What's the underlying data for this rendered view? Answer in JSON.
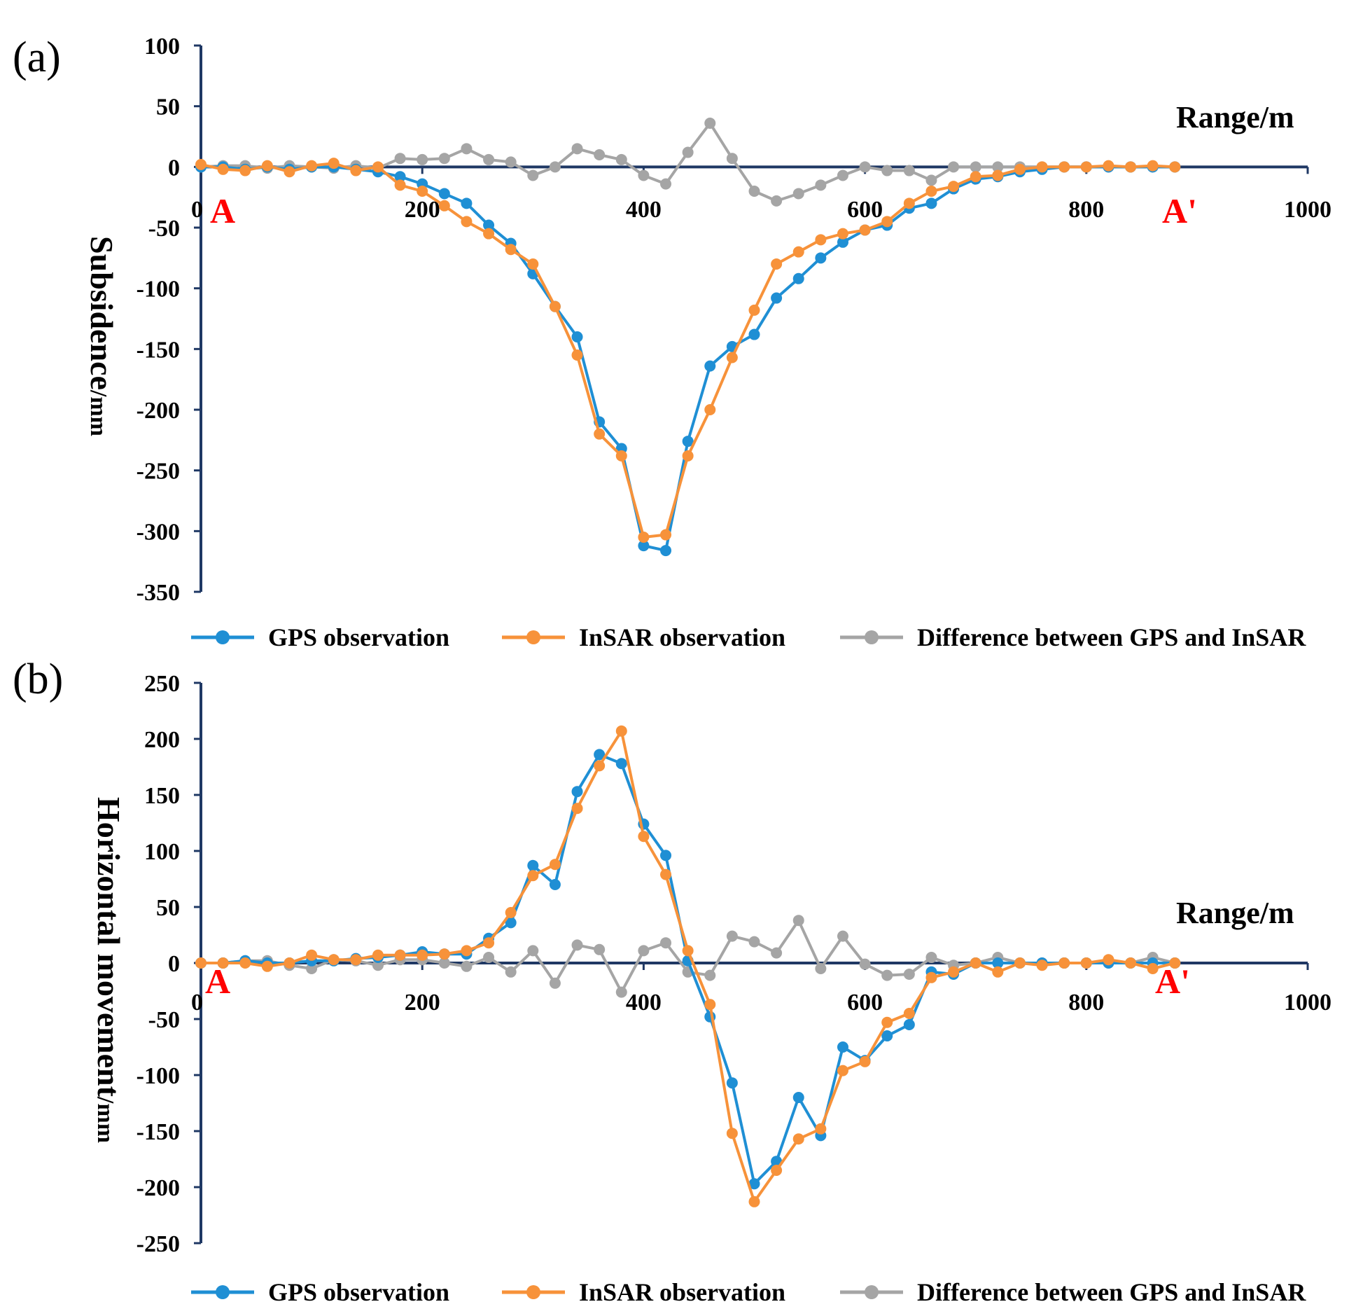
{
  "chart_data": [
    {
      "type": "line",
      "panel_tag": "(a)",
      "ylabel": "Subsidence",
      "ylabel_unit": "/mm",
      "xlabel": "Range/m",
      "start_label": "A",
      "end_label": "A'",
      "xlim": [
        0,
        1000
      ],
      "ylim": [
        -350,
        100
      ],
      "xticks": [
        0,
        200,
        400,
        600,
        800,
        1000
      ],
      "yticks": [
        100,
        50,
        0,
        -50,
        -100,
        -150,
        -200,
        -250,
        -300,
        -350
      ],
      "x": [
        0,
        20,
        40,
        60,
        80,
        100,
        120,
        140,
        160,
        180,
        200,
        220,
        240,
        260,
        280,
        300,
        320,
        340,
        360,
        380,
        400,
        420,
        440,
        460,
        480,
        500,
        520,
        540,
        560,
        580,
        600,
        620,
        640,
        660,
        680,
        700,
        720,
        740,
        760,
        780,
        800,
        820,
        840,
        860,
        880
      ],
      "series": [
        {
          "name": "GPS observation",
          "color": "#1f8fd4",
          "values": [
            0,
            0,
            -2,
            0,
            -2,
            0,
            0,
            -2,
            -4,
            -8,
            -14,
            -22,
            -30,
            -48,
            -63,
            -88,
            -115,
            -140,
            -210,
            -232,
            -312,
            -316,
            -226,
            -164,
            -148,
            -138,
            -108,
            -92,
            -75,
            -62,
            -52,
            -48,
            -34,
            -30,
            -18,
            -10,
            -8,
            -4,
            -2,
            0,
            0,
            0,
            0,
            0,
            0
          ]
        },
        {
          "name": "InSAR observation",
          "color": "#f7923a",
          "values": [
            2,
            -2,
            -3,
            1,
            -4,
            1,
            3,
            -3,
            0,
            -15,
            -20,
            -32,
            -45,
            -55,
            -68,
            -80,
            -115,
            -155,
            -220,
            -238,
            -305,
            -303,
            -238,
            -200,
            -157,
            -118,
            -80,
            -70,
            -60,
            -55,
            -52,
            -45,
            -30,
            -20,
            -16,
            -8,
            -7,
            -2,
            0,
            0,
            0,
            1,
            0,
            1,
            0
          ]
        },
        {
          "name": "Difference between GPS and InSAR",
          "color": "#a5a5a5",
          "values": [
            0,
            1,
            1,
            -1,
            1,
            0,
            -1,
            1,
            -1,
            7,
            6,
            7,
            15,
            6,
            4,
            -7,
            0,
            15,
            10,
            6,
            -7,
            -14,
            12,
            36,
            7,
            -20,
            -28,
            -22,
            -15,
            -7,
            0,
            -3,
            -3,
            -11,
            0,
            0,
            0,
            0,
            0,
            0,
            0,
            0,
            0,
            0,
            0
          ]
        }
      ]
    },
    {
      "type": "line",
      "panel_tag": "(b)",
      "ylabel": "Horizontal movement",
      "ylabel_unit": "/mm",
      "xlabel": "Range/m",
      "start_label": "A",
      "end_label": "A'",
      "xlim": [
        0,
        1000
      ],
      "ylim": [
        -250,
        250
      ],
      "xticks": [
        0,
        200,
        400,
        600,
        800,
        1000
      ],
      "yticks": [
        250,
        200,
        150,
        100,
        50,
        0,
        -50,
        -100,
        -150,
        -200,
        -250
      ],
      "x": [
        0,
        20,
        40,
        60,
        80,
        100,
        120,
        140,
        160,
        180,
        200,
        220,
        240,
        260,
        280,
        300,
        320,
        340,
        360,
        380,
        400,
        420,
        440,
        460,
        480,
        500,
        520,
        540,
        560,
        580,
        600,
        620,
        640,
        660,
        680,
        700,
        720,
        740,
        760,
        780,
        800,
        820,
        840,
        860,
        880
      ],
      "series": [
        {
          "name": "GPS observation",
          "color": "#1f8fd4",
          "values": [
            0,
            0,
            2,
            0,
            0,
            2,
            2,
            4,
            5,
            7,
            10,
            8,
            8,
            22,
            36,
            87,
            70,
            153,
            186,
            178,
            124,
            96,
            2,
            -48,
            -107,
            -197,
            -177,
            -120,
            -154,
            -75,
            -87,
            -65,
            -55,
            -8,
            -10,
            0,
            0,
            0,
            0,
            0,
            0,
            0,
            0,
            0,
            0
          ]
        },
        {
          "name": "InSAR observation",
          "color": "#f7923a",
          "values": [
            0,
            0,
            0,
            -3,
            0,
            7,
            3,
            3,
            7,
            7,
            7,
            8,
            11,
            18,
            45,
            78,
            88,
            138,
            176,
            207,
            113,
            79,
            11,
            -37,
            -152,
            -213,
            -185,
            -157,
            -148,
            -96,
            -88,
            -53,
            -45,
            -13,
            -8,
            0,
            -8,
            0,
            -2,
            0,
            0,
            3,
            0,
            -5,
            0
          ]
        },
        {
          "name": "Difference between GPS and InSAR",
          "color": "#a5a5a5",
          "values": [
            0,
            0,
            2,
            2,
            -2,
            -5,
            3,
            2,
            -2,
            3,
            3,
            0,
            -3,
            5,
            -8,
            11,
            -18,
            16,
            12,
            -26,
            11,
            18,
            -8,
            -11,
            24,
            19,
            9,
            38,
            -5,
            24,
            -1,
            -11,
            -10,
            5,
            -2,
            0,
            5,
            0,
            0,
            0,
            0,
            0,
            0,
            5,
            0
          ]
        }
      ]
    }
  ]
}
